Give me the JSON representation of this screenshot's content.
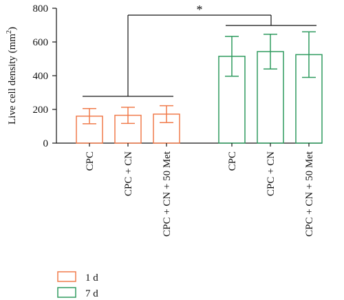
{
  "chart_data": {
    "type": "bar",
    "ylabel": "Live cell density (mm²)",
    "ylabel_parts": {
      "prefix": "Live cell density (mm",
      "sup": "2",
      "suffix": ")"
    },
    "ylim": [
      0,
      800
    ],
    "yticks": [
      0,
      200,
      400,
      600,
      800
    ],
    "grid": false,
    "legend_position": "bottom-left",
    "series": [
      {
        "name": "1 d",
        "color": "#f07a4a",
        "categories": [
          "CPC",
          "CPC + CN",
          "CPC + CN + 50 Met"
        ],
        "values": [
          160,
          165,
          172
        ],
        "error": [
          45,
          48,
          50
        ]
      },
      {
        "name": "7 d",
        "color": "#2e9a5e",
        "categories": [
          "CPC",
          "CPC + CN",
          "CPC + CN + 50 Met"
        ],
        "values": [
          515,
          543,
          525
        ],
        "error": [
          118,
          103,
          135
        ]
      }
    ],
    "annotations": [
      {
        "text": "*",
        "type": "significance",
        "between": [
          "1 d",
          "7 d"
        ]
      }
    ]
  }
}
